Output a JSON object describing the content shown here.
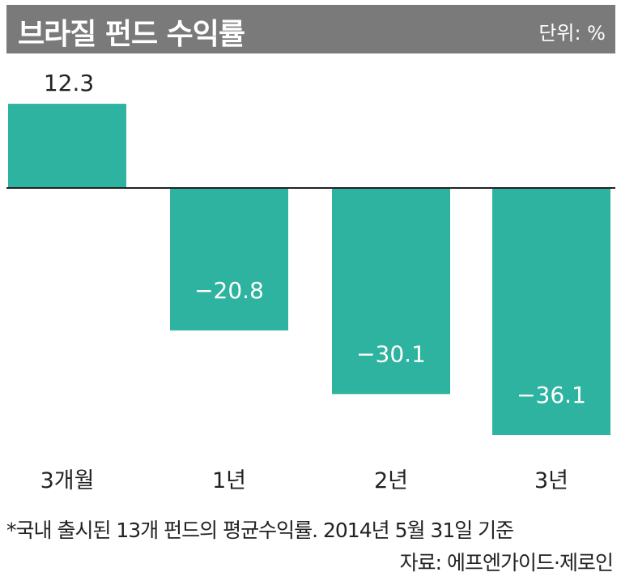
{
  "header": {
    "title": "브라질 펀드 수익률",
    "unit": "단위: %"
  },
  "chart_data": {
    "type": "bar",
    "title": "브라질 펀드 수익률",
    "unit": "단위: %",
    "categories": [
      "3개월",
      "1년",
      "2년",
      "3년"
    ],
    "values": [
      12.3,
      -20.8,
      -30.1,
      -36.1
    ],
    "value_labels": [
      "12.3",
      "−20.8",
      "−30.1",
      "−36.1"
    ],
    "ylim": [
      -36.1,
      12.3
    ],
    "grid": false,
    "bar_color": "#2db3a0"
  },
  "footnote": "*국내 출시된 13개 펀드의 평균수익률. 2014년 5월 31일 기준",
  "source": "자료: 에프엔가이드·제로인"
}
